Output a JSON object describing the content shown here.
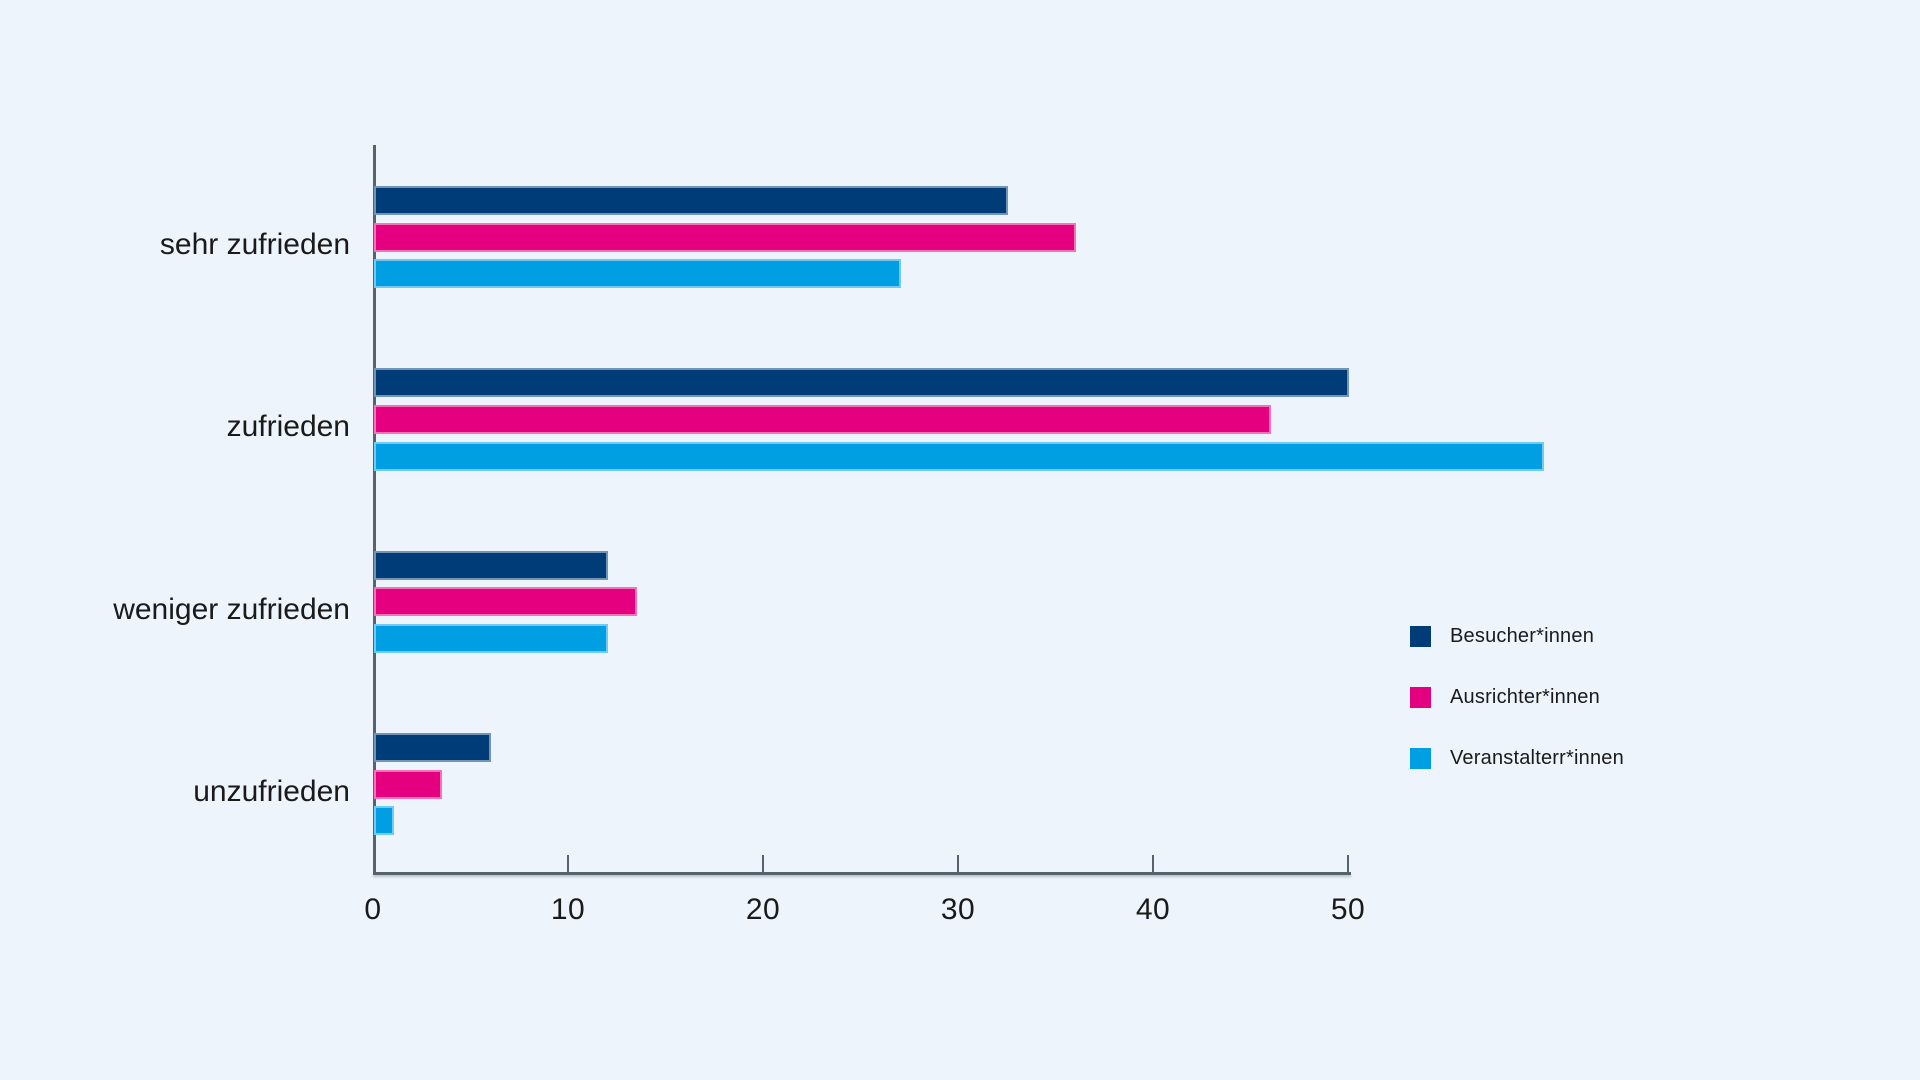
{
  "page": {
    "background_color": "#edf4fb",
    "text_color": "#1a1a1a",
    "axis_color": "#57636c"
  },
  "chart_data": {
    "type": "bar",
    "orientation": "horizontal",
    "title": "",
    "categories": [
      "sehr zufrieden",
      "zufrieden",
      "weniger zufrieden",
      "unzufrieden"
    ],
    "series": [
      {
        "name": "Besucher*innen",
        "color": "#003c78",
        "values": [
          32.5,
          50,
          12,
          6
        ]
      },
      {
        "name": "Ausrichter*innen",
        "color": "#e50080",
        "values": [
          36,
          46,
          13.5,
          3.5
        ]
      },
      {
        "name": "Veranstalterr*innen",
        "color": "#009fe3",
        "values": [
          27,
          60,
          12,
          1
        ]
      }
    ],
    "x_ticks": [
      0,
      10,
      20,
      30,
      40,
      50
    ],
    "xlim": [
      0,
      50
    ],
    "ylabel": "",
    "xlabel": "",
    "grid": false,
    "legend_position": "right"
  }
}
